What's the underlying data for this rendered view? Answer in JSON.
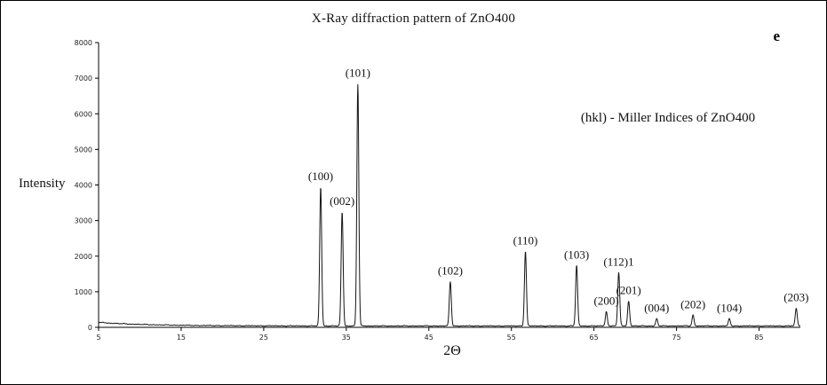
{
  "chart_data": {
    "type": "line",
    "title": "X-Ray diffraction pattern of ZnO400",
    "figure_label": "e",
    "annotation": "(hkl) - Miller Indices of ZnO400",
    "xlabel": "2Θ",
    "ylabel": "Intensity",
    "xlim": [
      5,
      90
    ],
    "ylim": [
      0,
      8000
    ],
    "x_ticks": [
      5,
      15,
      25,
      35,
      45,
      55,
      65,
      75,
      85
    ],
    "y_ticks": [
      0,
      1000,
      2000,
      3000,
      4000,
      5000,
      6000,
      7000,
      8000
    ],
    "grid": false,
    "legend": false,
    "line_color": "#141414",
    "baseline_intensity": {
      "start": 140,
      "end": 40
    },
    "peaks": [
      {
        "hkl": "(100)",
        "two_theta": 31.9,
        "intensity": 3900
      },
      {
        "hkl": "(002)",
        "two_theta": 34.5,
        "intensity": 3200
      },
      {
        "hkl": "(101)",
        "two_theta": 36.4,
        "intensity": 6800
      },
      {
        "hkl": "(102)",
        "two_theta": 47.6,
        "intensity": 1250
      },
      {
        "hkl": "(110)",
        "two_theta": 56.7,
        "intensity": 2100
      },
      {
        "hkl": "(103)",
        "two_theta": 62.9,
        "intensity": 1700
      },
      {
        "hkl": "(200)",
        "two_theta": 66.5,
        "intensity": 400
      },
      {
        "hkl": "(112)1",
        "two_theta": 68.0,
        "intensity": 1500
      },
      {
        "hkl": "(201)",
        "two_theta": 69.2,
        "intensity": 700
      },
      {
        "hkl": "(004)",
        "two_theta": 72.6,
        "intensity": 200
      },
      {
        "hkl": "(202)",
        "two_theta": 77.0,
        "intensity": 300
      },
      {
        "hkl": "(104)",
        "two_theta": 81.4,
        "intensity": 200
      },
      {
        "hkl": "(203)",
        "two_theta": 89.5,
        "intensity": 500
      }
    ]
  }
}
